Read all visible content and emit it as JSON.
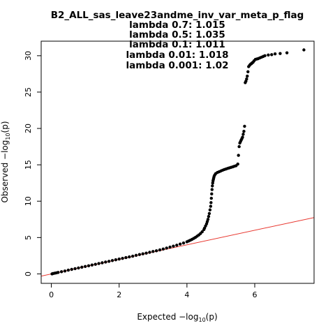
{
  "chart_data": {
    "type": "scatter",
    "title": "B2_ALL_sas_leave23andme_inv_var_meta_p_flag",
    "subtitle_lines": [
      "lambda 0.7: 1.015",
      "lambda 0.5: 1.035",
      "lambda 0.1: 1.011",
      "lambda 0.01: 1.018",
      "lambda 0.001: 1.02"
    ],
    "xlabel": {
      "main": "Expected  −log",
      "sub": "10",
      "tail": "(p)"
    },
    "ylabel": {
      "main": "Observed  −log",
      "sub": "10",
      "tail": "(p)"
    },
    "xlim": [
      -0.3,
      7.75
    ],
    "ylim": [
      -1.3,
      32.0
    ],
    "x_ticks": [
      0,
      2,
      4,
      6
    ],
    "x_tick_labels": [
      "0",
      "2",
      "4",
      "6"
    ],
    "y_ticks": [
      0,
      5,
      10,
      15,
      20,
      25,
      30
    ],
    "y_tick_labels": [
      "0",
      "5",
      "10",
      "15",
      "20",
      "25",
      "30"
    ],
    "grid": false,
    "reference_line": {
      "slope": 1,
      "intercept": 0,
      "color": "#e8372f"
    },
    "point_color": "#000000",
    "points_x": [
      0.02,
      0.05,
      0.1,
      0.15,
      0.2,
      0.3,
      0.4,
      0.5,
      0.6,
      0.7,
      0.8,
      0.9,
      1.0,
      1.1,
      1.2,
      1.3,
      1.4,
      1.5,
      1.6,
      1.7,
      1.8,
      1.9,
      2.0,
      2.1,
      2.2,
      2.3,
      2.4,
      2.5,
      2.6,
      2.7,
      2.8,
      2.9,
      3.0,
      3.1,
      3.2,
      3.3,
      3.4,
      3.5,
      3.6,
      3.7,
      3.8,
      3.9,
      4.0,
      4.05,
      4.1,
      4.15,
      4.2,
      4.25,
      4.3,
      4.35,
      4.4,
      4.45,
      4.5,
      4.52,
      4.55,
      4.58,
      4.6,
      4.62,
      4.64,
      4.66,
      4.68,
      4.7,
      4.71,
      4.72,
      4.73,
      4.74,
      4.75,
      4.76,
      4.77,
      4.78,
      4.79,
      4.8,
      4.82,
      4.85,
      4.9,
      4.95,
      5.0,
      5.05,
      5.1,
      5.15,
      5.2,
      5.25,
      5.3,
      5.35,
      5.4,
      5.45,
      5.5,
      5.52,
      5.54,
      5.56,
      5.58,
      5.6,
      5.62,
      5.64,
      5.66,
      5.68,
      5.7,
      5.72,
      5.74,
      5.76,
      5.78,
      5.8,
      5.82,
      5.85,
      5.88,
      5.9,
      5.92,
      5.95,
      5.98,
      6.02,
      6.06,
      6.1,
      6.15,
      6.2,
      6.25,
      6.3,
      6.4,
      6.5,
      6.6,
      6.75,
      6.95,
      7.45
    ],
    "points_y": [
      0.0,
      0.05,
      0.1,
      0.15,
      0.2,
      0.3,
      0.4,
      0.52,
      0.62,
      0.72,
      0.82,
      0.92,
      1.02,
      1.12,
      1.22,
      1.32,
      1.43,
      1.53,
      1.63,
      1.73,
      1.84,
      1.94,
      2.04,
      2.14,
      2.24,
      2.34,
      2.44,
      2.55,
      2.66,
      2.76,
      2.86,
      2.97,
      3.08,
      3.18,
      3.3,
      3.42,
      3.55,
      3.68,
      3.82,
      3.95,
      4.1,
      4.25,
      4.42,
      4.52,
      4.63,
      4.75,
      4.88,
      5.02,
      5.18,
      5.35,
      5.55,
      5.8,
      6.1,
      6.3,
      6.6,
      6.9,
      7.2,
      7.5,
      7.9,
      8.3,
      8.8,
      9.3,
      9.8,
      10.4,
      11.0,
      11.6,
      12.1,
      12.5,
      12.8,
      13.0,
      13.2,
      13.4,
      13.6,
      13.8,
      13.95,
      14.05,
      14.15,
      14.25,
      14.35,
      14.42,
      14.5,
      14.58,
      14.65,
      14.72,
      14.8,
      14.88,
      15.1,
      16.3,
      17.5,
      18.0,
      18.2,
      18.4,
      18.6,
      18.8,
      19.2,
      19.6,
      20.3,
      26.3,
      26.5,
      26.8,
      27.2,
      27.8,
      28.5,
      28.7,
      28.85,
      28.9,
      29.0,
      29.1,
      29.3,
      29.5,
      29.55,
      29.6,
      29.7,
      29.8,
      29.9,
      30.0,
      30.1,
      30.15,
      30.25,
      30.3,
      30.4,
      30.8
    ]
  }
}
